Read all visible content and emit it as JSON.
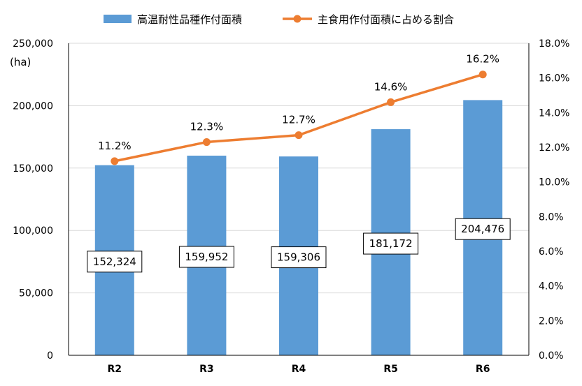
{
  "chart_data": {
    "type": "bar",
    "categories": [
      "R2",
      "R3",
      "R4",
      "R5",
      "R6"
    ],
    "series": [
      {
        "name": "高温耐性品種作付面積",
        "type": "bar",
        "axis": "left",
        "values": [
          152324,
          159952,
          159306,
          181172,
          204476
        ],
        "labels": [
          "152,324",
          "159,952",
          "159,306",
          "181,172",
          "204,476"
        ],
        "color": "#5B9BD5"
      },
      {
        "name": "主食用作付面積に占める割合",
        "type": "line",
        "axis": "right",
        "values": [
          11.2,
          12.3,
          12.7,
          14.6,
          16.2
        ],
        "labels": [
          "11.2%",
          "12.3%",
          "12.7%",
          "14.6%",
          "16.2%"
        ],
        "color": "#ED7D31"
      }
    ],
    "y_left": {
      "unit": "(ha)",
      "ylim": [
        0,
        250000
      ],
      "ticks": [
        "0",
        "50,000",
        "100,000",
        "150,000",
        "200,000",
        "250,000"
      ]
    },
    "y_right": {
      "ylim": [
        0,
        18
      ],
      "ticks": [
        "0.0%",
        "2.0%",
        "4.0%",
        "6.0%",
        "8.0%",
        "10.0%",
        "12.0%",
        "14.0%",
        "16.0%",
        "18.0%"
      ]
    },
    "grid": true,
    "legend_position": "top"
  }
}
